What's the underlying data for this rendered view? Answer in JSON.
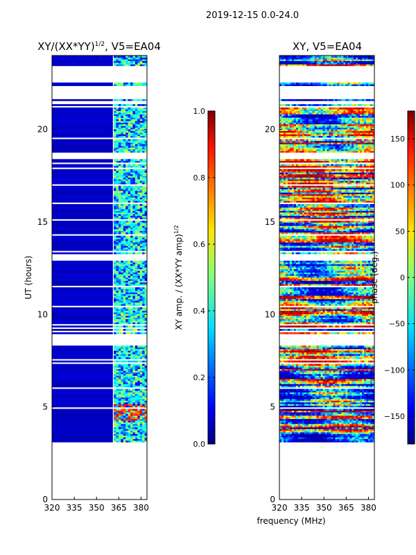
{
  "figure": {
    "suptitle": "2019-12-15 0.0-24.0",
    "shared_xlabel": "frequency (MHz)"
  },
  "chart_data": [
    {
      "type": "heatmap",
      "title_main": "XY/(XX*YY)",
      "title_exp": "1/2",
      "title_tail": ", V5=EA04",
      "xlabel": "",
      "ylabel": "UT (hours)",
      "xlim": [
        320,
        384
      ],
      "ylim": [
        0,
        24
      ],
      "xticks": [
        320,
        335,
        350,
        365,
        380
      ],
      "yticks": [
        0,
        5,
        10,
        15,
        20
      ],
      "colorbar": {
        "label_main": "XY amp. / (XX*YY amp)",
        "label_exp": "1/2",
        "range": [
          0.0,
          1.0
        ],
        "ticks": [
          "0.0",
          "0.2",
          "0.4",
          "0.6",
          "0.8",
          "1.0"
        ],
        "tick_values": [
          0.0,
          0.2,
          0.4,
          0.6,
          0.8,
          1.0
        ],
        "colormap": "jet"
      },
      "data_coverage_hours": [
        3.1,
        23.9
      ],
      "description_of_values": "mostly near 0.0 (dark blue) for 320-361 MHz; mixed 0.2-0.6 in 361-382 MHz; elevated 0.7-0.9 patches near 4.3-5.0 h"
    },
    {
      "type": "heatmap",
      "title_main": "XY, V5=EA04",
      "xlabel": "frequency (MHz)",
      "ylabel": "",
      "xlim": [
        320,
        384
      ],
      "ylim": [
        0,
        24
      ],
      "xticks": [
        320,
        335,
        350,
        365,
        380
      ],
      "yticks": [
        0,
        5,
        10,
        15,
        20
      ],
      "colorbar": {
        "label_main": "phase (deg.)",
        "range": [
          -180,
          180
        ],
        "ticks": [
          "150",
          "100",
          "50",
          "0",
          "−50",
          "−100",
          "−150"
        ],
        "tick_values": [
          150,
          100,
          50,
          0,
          -50,
          -100,
          -150
        ],
        "colormap": "jet"
      },
      "data_coverage_hours": [
        3.1,
        23.9
      ],
      "description_of_values": "phases spanning -180 to 180 deg, banded by time with frequency-dependent structure"
    }
  ],
  "colors": {
    "jet_stops": [
      "#000080",
      "#0000ff",
      "#00ffff",
      "#80ff80",
      "#ffff00",
      "#ff0000",
      "#800000"
    ]
  }
}
